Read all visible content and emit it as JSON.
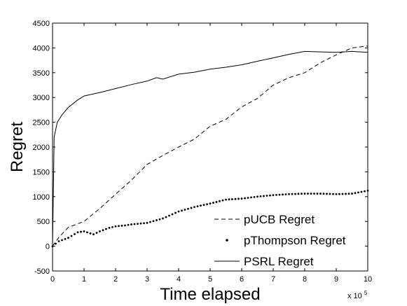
{
  "chart_data": {
    "type": "line",
    "xlabel": "Time elapsed",
    "ylabel": "Regret",
    "x_multiplier_label": {
      "prefix": "x 10",
      "exponent": "5"
    },
    "xlim": [
      0,
      10
    ],
    "ylim": [
      -500,
      4500
    ],
    "xticks": [
      0,
      1,
      2,
      3,
      4,
      5,
      6,
      7,
      8,
      9,
      10
    ],
    "yticks": [
      -500,
      0,
      500,
      1000,
      1500,
      2000,
      2500,
      3000,
      3500,
      4000,
      4500
    ],
    "grid": false,
    "legend_position": "bottom-right",
    "series": [
      {
        "name": "pUCB Regret",
        "style": "dashed",
        "color": "#000000",
        "x": [
          0,
          0.2,
          0.5,
          1.0,
          1.5,
          2.0,
          2.5,
          3.0,
          3.5,
          4.0,
          4.5,
          5.0,
          5.5,
          6.0,
          6.5,
          7.0,
          7.5,
          8.0,
          8.5,
          9.0,
          9.5,
          10.0
        ],
        "y": [
          0,
          180,
          380,
          500,
          760,
          1050,
          1330,
          1650,
          1830,
          2000,
          2160,
          2420,
          2560,
          2810,
          2980,
          3250,
          3400,
          3500,
          3700,
          3860,
          4000,
          4040
        ]
      },
      {
        "name": "pThompson Regret",
        "style": "dotted",
        "color": "#000000",
        "x": [
          0,
          0.2,
          0.5,
          0.8,
          1.0,
          1.3,
          1.5,
          1.8,
          2.0,
          2.3,
          2.5,
          3.0,
          3.5,
          4.0,
          4.5,
          5.0,
          5.5,
          6.0,
          6.5,
          7.0,
          7.5,
          8.0,
          8.5,
          9.0,
          9.5,
          10.0
        ],
        "y": [
          0,
          100,
          170,
          280,
          300,
          240,
          300,
          370,
          400,
          420,
          440,
          470,
          560,
          700,
          790,
          860,
          940,
          960,
          1000,
          1030,
          1050,
          1060,
          1060,
          1050,
          1060,
          1120
        ]
      },
      {
        "name": "PSRL Regret",
        "style": "solid",
        "color": "#000000",
        "x": [
          0,
          0.05,
          0.15,
          0.3,
          0.5,
          0.8,
          1.0,
          1.5,
          2.0,
          2.5,
          3.0,
          3.3,
          3.5,
          4.0,
          4.5,
          5.0,
          5.5,
          6.0,
          6.5,
          7.0,
          7.5,
          8.0,
          8.5,
          9.0,
          9.5,
          10.0
        ],
        "y": [
          0,
          2200,
          2500,
          2650,
          2800,
          2950,
          3030,
          3100,
          3180,
          3260,
          3330,
          3400,
          3370,
          3470,
          3510,
          3570,
          3610,
          3660,
          3730,
          3800,
          3870,
          3930,
          3920,
          3910,
          3930,
          3910
        ]
      }
    ]
  }
}
